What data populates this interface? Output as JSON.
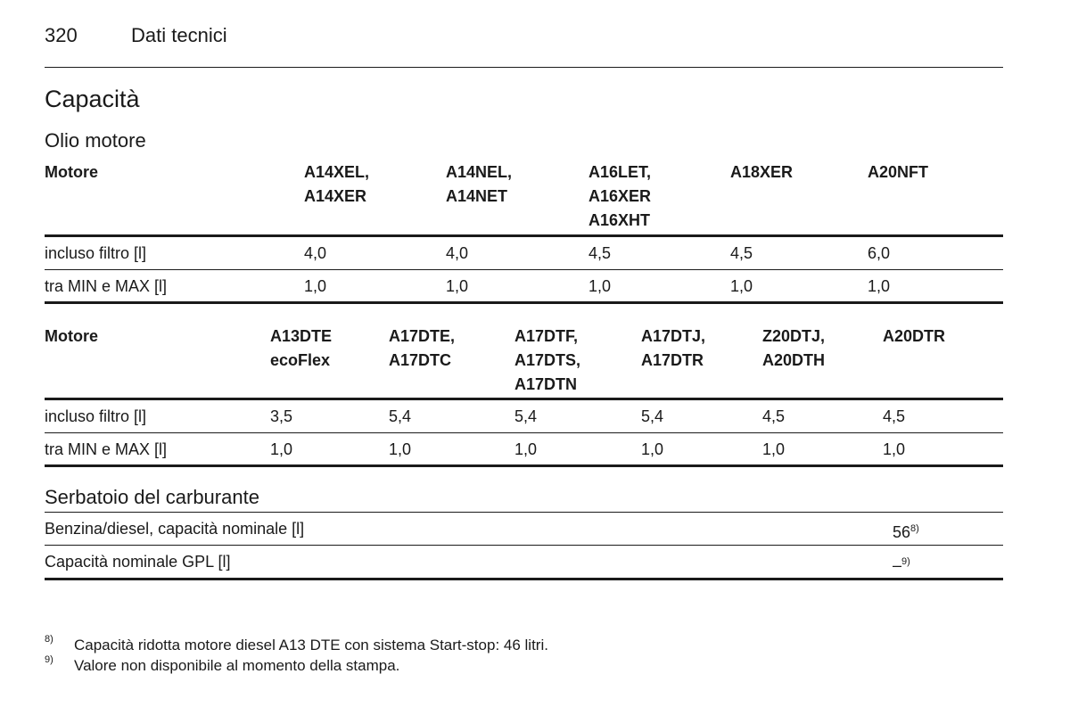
{
  "header": {
    "page_number": "320",
    "section": "Dati tecnici"
  },
  "title": "Capacità",
  "oil": {
    "heading": "Olio motore",
    "table1": {
      "header_label": "Motore",
      "engines": [
        "A14XEL,\nA14XER",
        "A14NEL,\nA14NET",
        "A16LET,\nA16XER\nA16XHT",
        "A18XER",
        "A20NFT"
      ],
      "rows": [
        {
          "label": "incluso filtro [l]",
          "values": [
            "4,0",
            "4,0",
            "4,5",
            "4,5",
            "6,0"
          ]
        },
        {
          "label": "tra MIN e MAX [l]",
          "values": [
            "1,0",
            "1,0",
            "1,0",
            "1,0",
            "1,0"
          ]
        }
      ]
    },
    "table2": {
      "header_label": "Motore",
      "engines": [
        "A13DTE\necoFlex",
        "A17DTE,\nA17DTC",
        "A17DTF,\nA17DTS,\nA17DTN",
        "A17DTJ,\nA17DTR",
        "Z20DTJ,\nA20DTH",
        "A20DTR"
      ],
      "rows": [
        {
          "label": "incluso filtro [l]",
          "values": [
            "3,5",
            "5,4",
            "5,4",
            "5,4",
            "4,5",
            "4,5"
          ]
        },
        {
          "label": "tra MIN e MAX [l]",
          "values": [
            "1,0",
            "1,0",
            "1,0",
            "1,0",
            "1,0",
            "1,0"
          ]
        }
      ]
    }
  },
  "fuel": {
    "heading": "Serbatoio del carburante",
    "rows": [
      {
        "label": "Benzina/diesel, capacità nominale [l]",
        "value": "56",
        "footnote": "8)"
      },
      {
        "label": "Capacità nominale GPL [l]",
        "value": "–",
        "footnote": "9)"
      }
    ]
  },
  "footnotes": [
    {
      "mark": "8)",
      "text": "Capacità ridotta motore diesel A13 DTE con sistema Start-stop: 46 litri."
    },
    {
      "mark": "9)",
      "text": "Valore non disponibile al momento della stampa."
    }
  ]
}
